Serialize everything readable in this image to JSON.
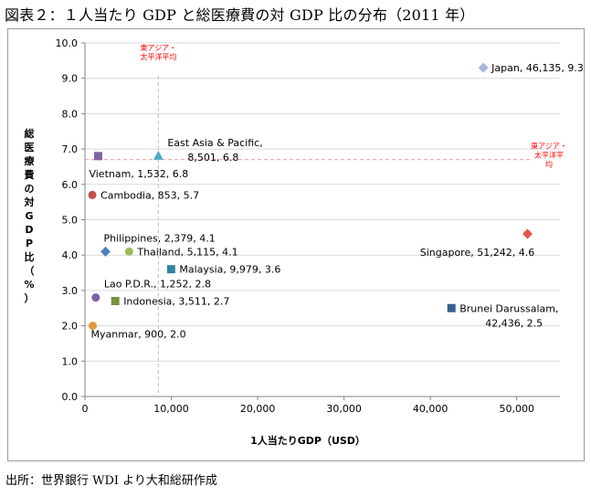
{
  "figure_title": "図表２：１人当たり GDP と総医療費の対 GDP 比の分布（2011 年）",
  "source": "出所：世界銀行 WDI より大和総研作成",
  "chart_data": {
    "type": "scatter",
    "title": "",
    "xlabel": "1人当たりGDP（USD）",
    "ylabel": "総医療費の対GDP比（%）",
    "xlim": [
      0,
      55000
    ],
    "ylim": [
      0,
      10
    ],
    "x_ticks": [
      0,
      10000,
      20000,
      30000,
      40000,
      50000
    ],
    "x_tick_labels": [
      "0",
      "10,000",
      "20,000",
      "30,000",
      "40,000",
      "50,000"
    ],
    "y_ticks": [
      0,
      1,
      2,
      3,
      4,
      5,
      6,
      7,
      8,
      9,
      10
    ],
    "y_tick_labels": [
      "0.0",
      "1.0",
      "2.0",
      "3.0",
      "4.0",
      "5.0",
      "6.0",
      "7.0",
      "8.0",
      "9.0",
      "10.0"
    ],
    "grid": "horizontal",
    "points": [
      {
        "label": "Japan, 46,135, 9.3",
        "x": 46135,
        "y": 9.3,
        "marker": "diamond",
        "color": "#a5b6d9",
        "label_pos": "right"
      },
      {
        "label": "East Asia & Pacific,\n8,501, 6.8",
        "x": 8501,
        "y": 6.8,
        "marker": "triangle",
        "color": "#4bacc6",
        "label_pos": "upper-right"
      },
      {
        "label": "Vietnam, 1,532, 6.8",
        "x": 1532,
        "y": 6.8,
        "marker": "square",
        "color": "#8064a2",
        "label_pos": "below"
      },
      {
        "label": "Cambodia, 853, 5.7",
        "x": 853,
        "y": 5.7,
        "marker": "circle",
        "color": "#c0504d",
        "label_pos": "right"
      },
      {
        "label": "Singapore, 51,242, 4.6",
        "x": 51242,
        "y": 4.6,
        "marker": "diamond",
        "color": "#e05545",
        "label_pos": "below-left"
      },
      {
        "label": "Philippines, 2,379, 4.1",
        "x": 2379,
        "y": 4.1,
        "marker": "diamond",
        "color": "#4f81bd",
        "label_pos": "above"
      },
      {
        "label": "Thailand, 5,115, 4.1",
        "x": 5115,
        "y": 4.1,
        "marker": "circle",
        "color": "#9bbb59",
        "label_pos": "right"
      },
      {
        "label": "Malaysia, 9,979, 3.6",
        "x": 9979,
        "y": 3.6,
        "marker": "square",
        "color": "#31859c",
        "label_pos": "right"
      },
      {
        "label": "Lao P.D.R., 1,252, 2.8",
        "x": 1252,
        "y": 2.8,
        "marker": "circle",
        "color": "#7f5fa6",
        "label_pos": "above-right"
      },
      {
        "label": "Indonesia, 3,511, 2.7",
        "x": 3511,
        "y": 2.7,
        "marker": "square",
        "color": "#76923c",
        "label_pos": "right"
      },
      {
        "label": "Brunei Darussalam,\n42,436, 2.5",
        "x": 42436,
        "y": 2.5,
        "marker": "square",
        "color": "#365f91",
        "label_pos": "right"
      },
      {
        "label": "Myanmar, 900, 2.0",
        "x": 900,
        "y": 2.0,
        "marker": "circle",
        "color": "#e39a3c",
        "label_pos": "below-right"
      }
    ],
    "reference_lines": [
      {
        "axis": "x",
        "value": 8501,
        "label": "東アジア・\n太平洋平均",
        "color": "#c8c8c8",
        "label_color": "#ff0000",
        "label_pos": "top"
      },
      {
        "axis": "y",
        "value": 6.7,
        "label": "東アジア・\n太平洋平\n均",
        "color": "#f4a3a3",
        "label_color": "#ff0000",
        "label_pos": "right"
      }
    ]
  }
}
